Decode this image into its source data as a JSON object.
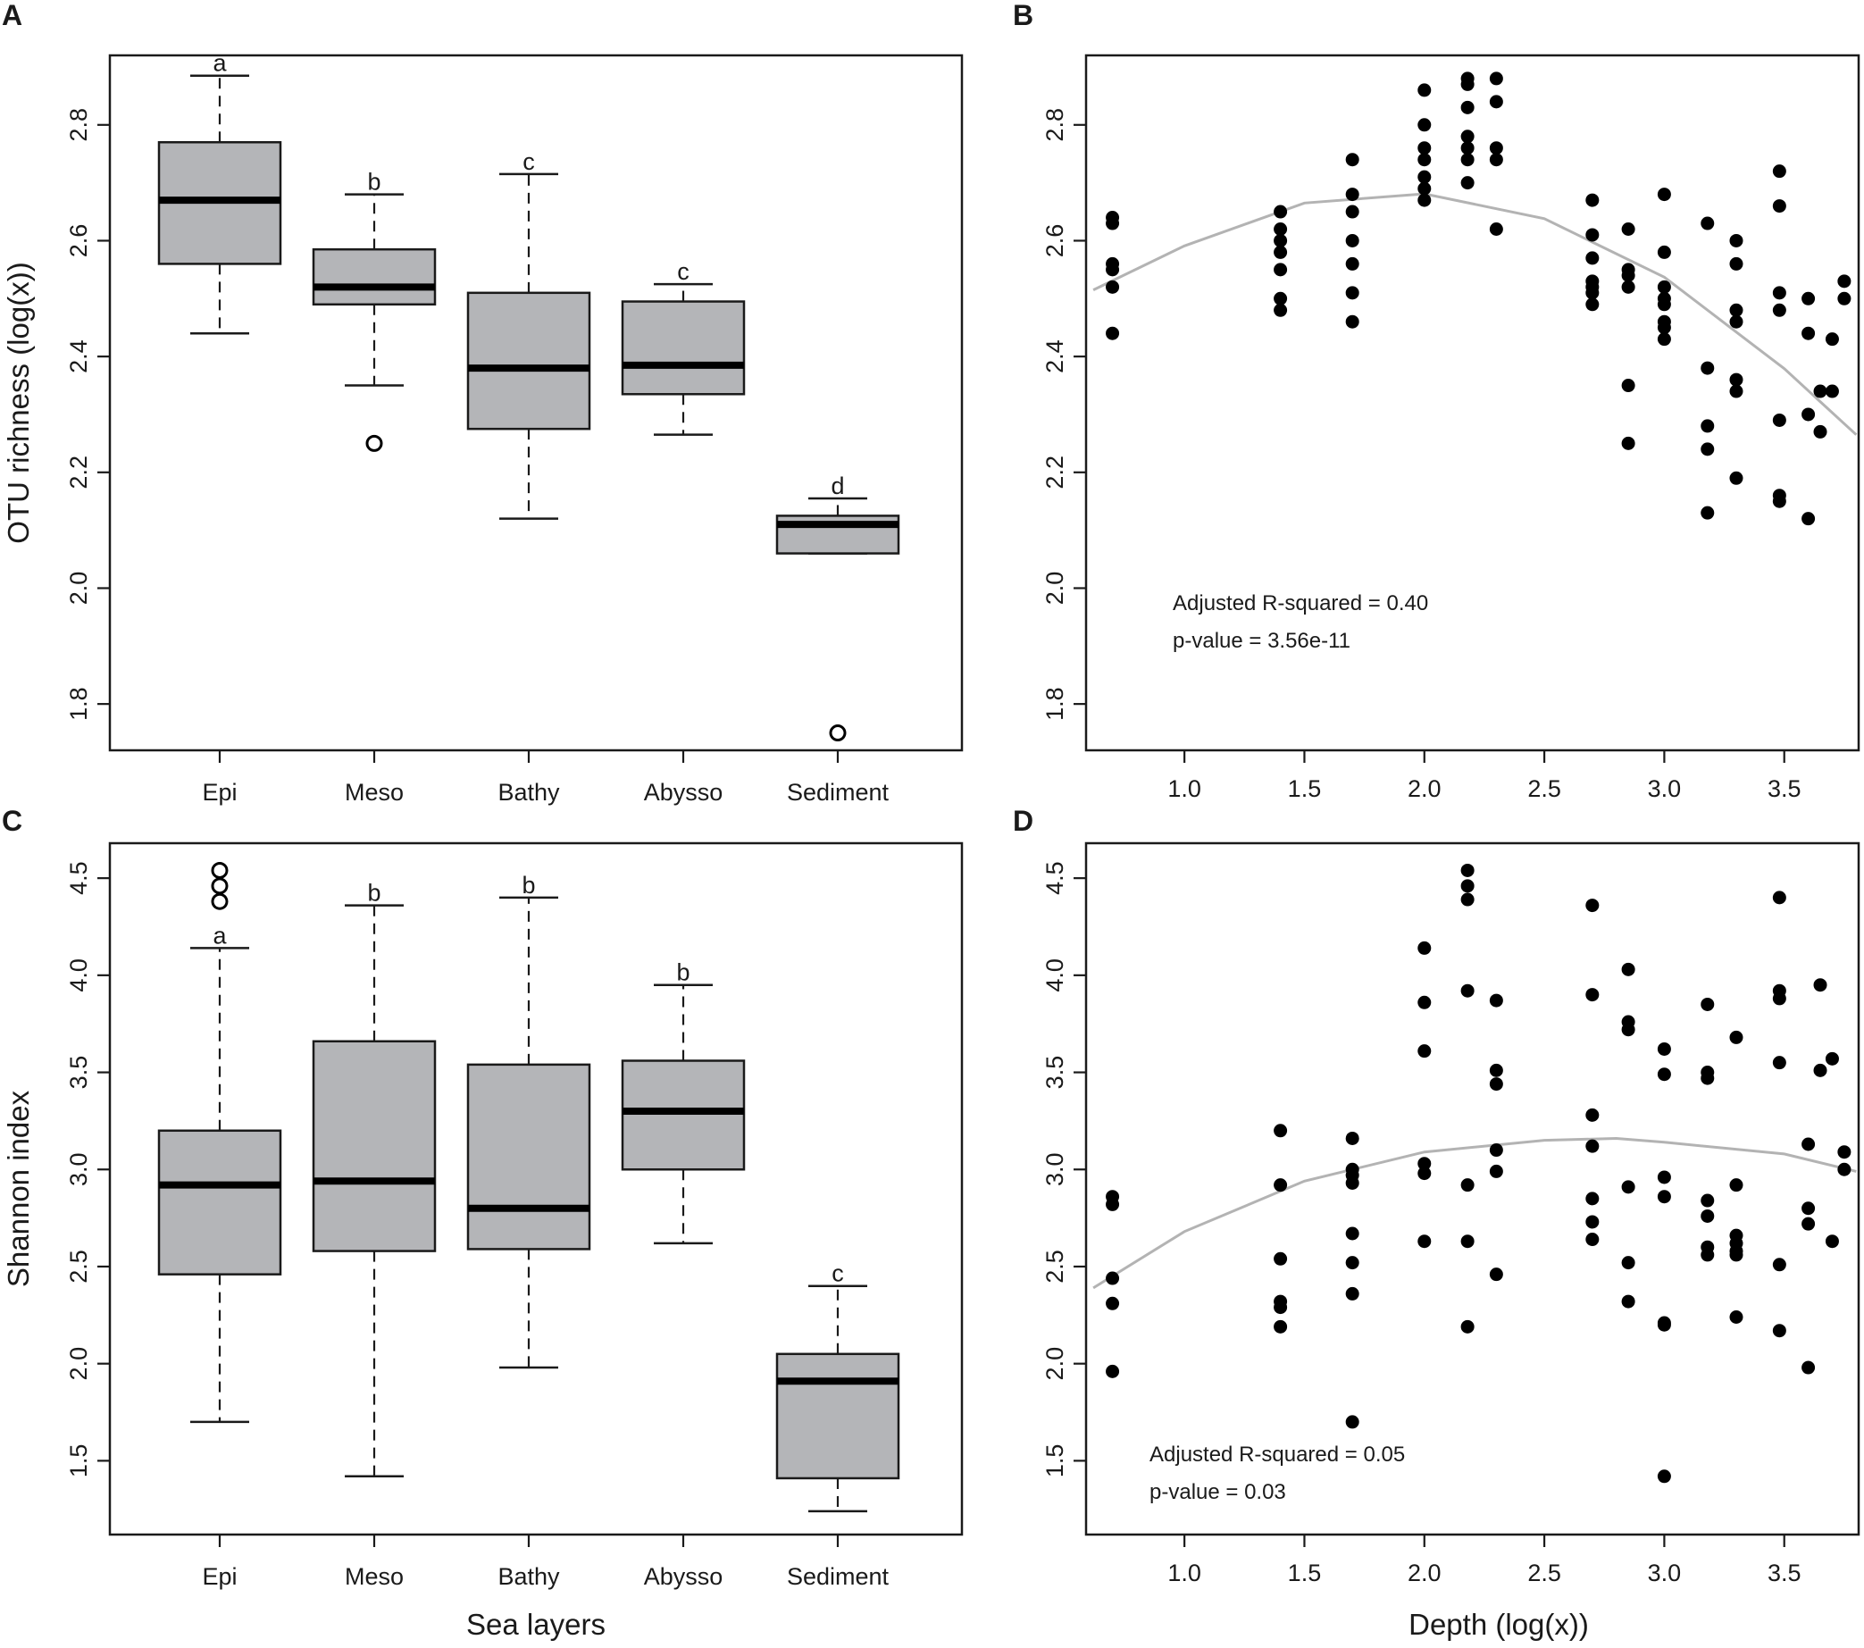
{
  "panel_labels": [
    "A",
    "B",
    "C",
    "D"
  ],
  "axis_titles": {
    "A_y": "OTU richness (log(x))",
    "C_y": "Shannon index",
    "C_x": "Sea layers",
    "D_x": "Depth (log(x))"
  },
  "chart_data": [
    {
      "panel": "A",
      "type": "boxplot",
      "ylabel": "OTU richness (log(x))",
      "xlabel": "",
      "ylim": [
        1.72,
        2.92
      ],
      "yticks": [
        1.8,
        2.0,
        2.2,
        2.4,
        2.6,
        2.8
      ],
      "categories": [
        "Epi",
        "Meso",
        "Bathy",
        "Abysso",
        "Sediment"
      ],
      "boxes": [
        {
          "category": "Epi",
          "lower_whisker": 2.44,
          "q1": 2.56,
          "median": 2.67,
          "q3": 2.77,
          "upper_whisker": 2.885,
          "outliers": [],
          "letter": "a"
        },
        {
          "category": "Meso",
          "lower_whisker": 2.35,
          "q1": 2.49,
          "median": 2.52,
          "q3": 2.585,
          "upper_whisker": 2.68,
          "outliers": [
            2.25
          ],
          "letter": "b"
        },
        {
          "category": "Bathy",
          "lower_whisker": 2.12,
          "q1": 2.275,
          "median": 2.38,
          "q3": 2.51,
          "upper_whisker": 2.715,
          "outliers": [],
          "letter": "c"
        },
        {
          "category": "Abysso",
          "lower_whisker": 2.265,
          "q1": 2.335,
          "median": 2.385,
          "q3": 2.495,
          "upper_whisker": 2.525,
          "outliers": [],
          "letter": "c"
        },
        {
          "category": "Sediment",
          "lower_whisker": 2.06,
          "q1": 2.06,
          "median": 2.11,
          "q3": 2.125,
          "upper_whisker": 2.155,
          "outliers": [
            1.75
          ],
          "letter": "d"
        }
      ]
    },
    {
      "panel": "B",
      "type": "scatter",
      "xlabel": "",
      "ylabel": "",
      "xlim": [
        0.59,
        3.81
      ],
      "ylim": [
        1.72,
        2.92
      ],
      "xticks": [
        1.0,
        1.5,
        2.0,
        2.5,
        3.0,
        3.5
      ],
      "yticks": [
        1.8,
        2.0,
        2.2,
        2.4,
        2.6,
        2.8
      ],
      "points": [
        [
          0.7,
          2.64
        ],
        [
          0.7,
          2.63
        ],
        [
          0.7,
          2.56
        ],
        [
          0.7,
          2.55
        ],
        [
          0.7,
          2.52
        ],
        [
          0.7,
          2.44
        ],
        [
          1.4,
          2.65
        ],
        [
          1.4,
          2.62
        ],
        [
          1.4,
          2.6
        ],
        [
          1.4,
          2.58
        ],
        [
          1.4,
          2.55
        ],
        [
          1.4,
          2.5
        ],
        [
          1.4,
          2.48
        ],
        [
          1.7,
          2.74
        ],
        [
          1.7,
          2.68
        ],
        [
          1.7,
          2.65
        ],
        [
          1.7,
          2.6
        ],
        [
          1.7,
          2.56
        ],
        [
          1.7,
          2.51
        ],
        [
          1.7,
          2.46
        ],
        [
          2.0,
          2.86
        ],
        [
          2.0,
          2.8
        ],
        [
          2.0,
          2.76
        ],
        [
          2.0,
          2.74
        ],
        [
          2.0,
          2.71
        ],
        [
          2.0,
          2.69
        ],
        [
          2.0,
          2.67
        ],
        [
          2.18,
          2.88
        ],
        [
          2.18,
          2.87
        ],
        [
          2.18,
          2.83
        ],
        [
          2.18,
          2.78
        ],
        [
          2.18,
          2.76
        ],
        [
          2.18,
          2.74
        ],
        [
          2.18,
          2.7
        ],
        [
          2.3,
          2.88
        ],
        [
          2.3,
          2.84
        ],
        [
          2.3,
          2.76
        ],
        [
          2.3,
          2.74
        ],
        [
          2.3,
          2.62
        ],
        [
          2.7,
          2.67
        ],
        [
          2.7,
          2.61
        ],
        [
          2.7,
          2.57
        ],
        [
          2.7,
          2.53
        ],
        [
          2.7,
          2.52
        ],
        [
          2.7,
          2.51
        ],
        [
          2.7,
          2.49
        ],
        [
          2.85,
          2.62
        ],
        [
          2.85,
          2.55
        ],
        [
          2.85,
          2.54
        ],
        [
          2.85,
          2.52
        ],
        [
          2.85,
          2.35
        ],
        [
          2.85,
          2.25
        ],
        [
          3.0,
          2.68
        ],
        [
          3.0,
          2.58
        ],
        [
          3.0,
          2.52
        ],
        [
          3.0,
          2.5
        ],
        [
          3.0,
          2.49
        ],
        [
          3.0,
          2.46
        ],
        [
          3.0,
          2.45
        ],
        [
          3.0,
          2.43
        ],
        [
          3.18,
          2.63
        ],
        [
          3.18,
          2.38
        ],
        [
          3.18,
          2.28
        ],
        [
          3.18,
          2.24
        ],
        [
          3.18,
          2.13
        ],
        [
          3.3,
          2.6
        ],
        [
          3.3,
          2.56
        ],
        [
          3.3,
          2.48
        ],
        [
          3.3,
          2.46
        ],
        [
          3.3,
          2.36
        ],
        [
          3.3,
          2.34
        ],
        [
          3.3,
          2.19
        ],
        [
          3.48,
          2.72
        ],
        [
          3.48,
          2.66
        ],
        [
          3.48,
          2.51
        ],
        [
          3.48,
          2.48
        ],
        [
          3.48,
          2.29
        ],
        [
          3.48,
          2.16
        ],
        [
          3.48,
          2.15
        ],
        [
          3.6,
          2.5
        ],
        [
          3.6,
          2.44
        ],
        [
          3.6,
          2.3
        ],
        [
          3.6,
          2.12
        ],
        [
          3.65,
          2.34
        ],
        [
          3.65,
          2.27
        ],
        [
          3.7,
          2.43
        ],
        [
          3.7,
          2.34
        ],
        [
          3.75,
          2.53
        ],
        [
          3.75,
          2.5
        ]
      ],
      "fit_curve": {
        "type": "quadratic",
        "samples": [
          [
            0.62,
            2.515
          ],
          [
            1.0,
            2.591
          ],
          [
            1.5,
            2.665
          ],
          [
            2.0,
            2.681
          ],
          [
            2.5,
            2.638
          ],
          [
            3.0,
            2.537
          ],
          [
            3.5,
            2.379
          ],
          [
            3.8,
            2.265
          ]
        ]
      },
      "annotations": [
        "Adjusted R-squared = 0.40",
        "p-value = 3.56e-11"
      ]
    },
    {
      "panel": "C",
      "type": "boxplot",
      "ylabel": "Shannon index",
      "xlabel": "Sea layers",
      "ylim": [
        1.12,
        4.68
      ],
      "yticks": [
        1.5,
        2.0,
        2.5,
        3.0,
        3.5,
        4.0,
        4.5
      ],
      "categories": [
        "Epi",
        "Meso",
        "Bathy",
        "Abysso",
        "Sediment"
      ],
      "boxes": [
        {
          "category": "Epi",
          "lower_whisker": 1.7,
          "q1": 2.46,
          "median": 2.92,
          "q3": 3.2,
          "upper_whisker": 4.14,
          "outliers": [
            4.38,
            4.46,
            4.54
          ],
          "letter": "a"
        },
        {
          "category": "Meso",
          "lower_whisker": 1.42,
          "q1": 2.58,
          "median": 2.94,
          "q3": 3.66,
          "upper_whisker": 4.36,
          "outliers": [],
          "letter": "b"
        },
        {
          "category": "Bathy",
          "lower_whisker": 1.98,
          "q1": 2.59,
          "median": 2.8,
          "q3": 3.54,
          "upper_whisker": 4.4,
          "outliers": [],
          "letter": "b"
        },
        {
          "category": "Abysso",
          "lower_whisker": 2.62,
          "q1": 3.0,
          "median": 3.3,
          "q3": 3.56,
          "upper_whisker": 3.95,
          "outliers": [],
          "letter": "b"
        },
        {
          "category": "Sediment",
          "lower_whisker": 1.24,
          "q1": 1.41,
          "median": 1.91,
          "q3": 2.05,
          "upper_whisker": 2.4,
          "outliers": [],
          "letter": "c"
        }
      ]
    },
    {
      "panel": "D",
      "type": "scatter",
      "xlabel": "Depth (log(x))",
      "ylabel": "",
      "xlim": [
        0.59,
        3.81
      ],
      "ylim": [
        1.12,
        4.68
      ],
      "xticks": [
        1.0,
        1.5,
        2.0,
        2.5,
        3.0,
        3.5
      ],
      "yticks": [
        1.5,
        2.0,
        2.5,
        3.0,
        3.5,
        4.0,
        4.5
      ],
      "points": [
        [
          0.7,
          2.86
        ],
        [
          0.7,
          2.82
        ],
        [
          0.7,
          2.44
        ],
        [
          0.7,
          2.31
        ],
        [
          0.7,
          1.96
        ],
        [
          1.4,
          3.2
        ],
        [
          1.4,
          2.92
        ],
        [
          1.4,
          2.54
        ],
        [
          1.4,
          2.32
        ],
        [
          1.4,
          2.29
        ],
        [
          1.4,
          2.19
        ],
        [
          1.7,
          3.16
        ],
        [
          1.7,
          3.0
        ],
        [
          1.7,
          2.97
        ],
        [
          1.7,
          2.93
        ],
        [
          1.7,
          2.67
        ],
        [
          1.7,
          2.52
        ],
        [
          1.7,
          2.36
        ],
        [
          1.7,
          1.7
        ],
        [
          2.0,
          4.14
        ],
        [
          2.0,
          3.86
        ],
        [
          2.0,
          3.61
        ],
        [
          2.0,
          3.03
        ],
        [
          2.0,
          2.98
        ],
        [
          2.0,
          2.63
        ],
        [
          2.18,
          4.54
        ],
        [
          2.18,
          4.46
        ],
        [
          2.18,
          4.39
        ],
        [
          2.18,
          3.92
        ],
        [
          2.18,
          2.92
        ],
        [
          2.18,
          2.63
        ],
        [
          2.18,
          2.19
        ],
        [
          2.3,
          3.87
        ],
        [
          2.3,
          3.51
        ],
        [
          2.3,
          3.44
        ],
        [
          2.3,
          3.1
        ],
        [
          2.3,
          2.99
        ],
        [
          2.3,
          2.46
        ],
        [
          2.7,
          4.36
        ],
        [
          2.7,
          3.9
        ],
        [
          2.7,
          3.28
        ],
        [
          2.7,
          3.12
        ],
        [
          2.7,
          2.85
        ],
        [
          2.7,
          2.73
        ],
        [
          2.7,
          2.64
        ],
        [
          2.85,
          4.03
        ],
        [
          2.85,
          3.76
        ],
        [
          2.85,
          3.72
        ],
        [
          2.85,
          2.91
        ],
        [
          2.85,
          2.52
        ],
        [
          2.85,
          2.32
        ],
        [
          3.0,
          3.62
        ],
        [
          3.0,
          3.49
        ],
        [
          3.0,
          2.96
        ],
        [
          3.0,
          2.86
        ],
        [
          3.0,
          2.21
        ],
        [
          3.0,
          2.2
        ],
        [
          3.0,
          1.42
        ],
        [
          3.18,
          3.85
        ],
        [
          3.18,
          3.5
        ],
        [
          3.18,
          3.47
        ],
        [
          3.18,
          2.84
        ],
        [
          3.18,
          2.76
        ],
        [
          3.18,
          2.6
        ],
        [
          3.18,
          2.56
        ],
        [
          3.3,
          3.68
        ],
        [
          3.3,
          2.92
        ],
        [
          3.3,
          2.66
        ],
        [
          3.3,
          2.62
        ],
        [
          3.3,
          2.58
        ],
        [
          3.3,
          2.56
        ],
        [
          3.3,
          2.24
        ],
        [
          3.48,
          4.4
        ],
        [
          3.48,
          3.92
        ],
        [
          3.48,
          3.88
        ],
        [
          3.48,
          3.55
        ],
        [
          3.48,
          2.51
        ],
        [
          3.48,
          2.17
        ],
        [
          3.6,
          3.13
        ],
        [
          3.6,
          2.8
        ],
        [
          3.6,
          2.72
        ],
        [
          3.6,
          1.98
        ],
        [
          3.65,
          3.95
        ],
        [
          3.65,
          3.51
        ],
        [
          3.7,
          3.57
        ],
        [
          3.7,
          2.63
        ],
        [
          3.75,
          3.09
        ],
        [
          3.75,
          3.0
        ]
      ],
      "fit_curve": {
        "type": "quadratic",
        "samples": [
          [
            0.62,
            2.39
          ],
          [
            1.0,
            2.68
          ],
          [
            1.5,
            2.94
          ],
          [
            2.0,
            3.09
          ],
          [
            2.5,
            3.15
          ],
          [
            2.8,
            3.16
          ],
          [
            3.0,
            3.14
          ],
          [
            3.5,
            3.08
          ],
          [
            3.8,
            2.99
          ]
        ]
      },
      "annotations": [
        "Adjusted R-squared = 0.05",
        "p-value = 0.03"
      ]
    }
  ]
}
